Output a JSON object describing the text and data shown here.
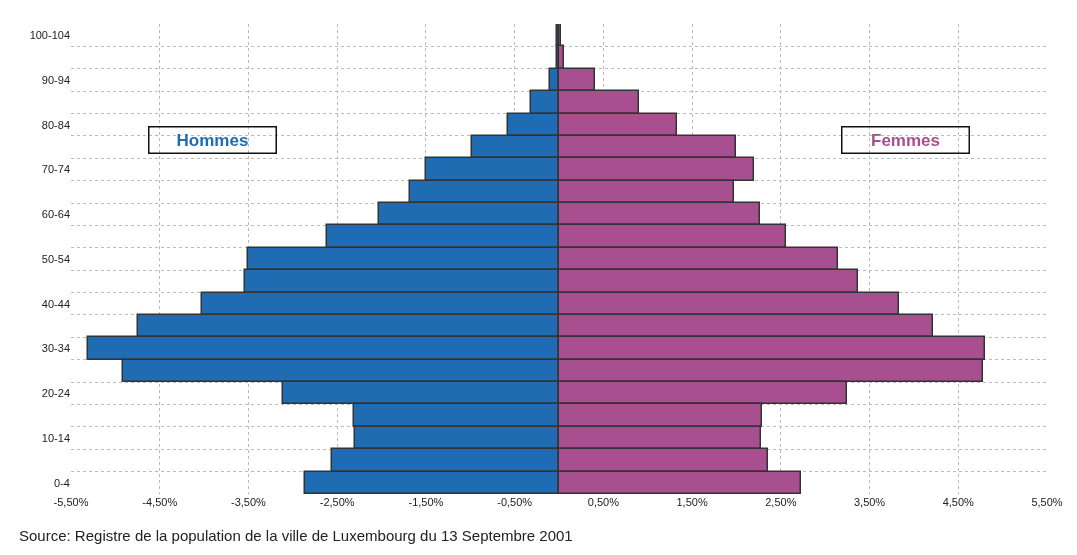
{
  "chart_data": {
    "type": "bar",
    "orientation": "horizontal",
    "categories": [
      "100-104",
      null,
      "90-94",
      null,
      "80-84",
      null,
      "70-74",
      null,
      "60-64",
      null,
      "50-54",
      null,
      "40-44",
      null,
      "30-34",
      null,
      "20-24",
      null,
      "10-14",
      null,
      "0-4"
    ],
    "series": [
      {
        "name": "Hommes",
        "color": "#1f6cb3",
        "values": [
          -0.02,
          -0.02,
          -0.1,
          -0.32,
          -0.58,
          -0.98,
          -1.5,
          -1.68,
          -2.03,
          -2.61,
          -3.5,
          -3.54,
          -4.02,
          -4.75,
          -5.31,
          -4.91,
          -3.11,
          -2.31,
          -2.3,
          -2.56,
          -2.86
        ]
      },
      {
        "name": "Femmes",
        "color": "#a8508f",
        "values": [
          0.02,
          0.06,
          0.41,
          0.9,
          1.33,
          2.0,
          2.2,
          1.97,
          2.26,
          2.56,
          3.15,
          3.37,
          3.83,
          4.22,
          4.8,
          4.78,
          3.25,
          2.29,
          2.28,
          2.36,
          2.73
        ]
      }
    ],
    "xlim": [
      -5.5,
      5.5
    ],
    "xticks": [
      {
        "value": -5.5,
        "label": "-5,50%"
      },
      {
        "value": -4.5,
        "label": "-4,50%"
      },
      {
        "value": -3.5,
        "label": "-3,50%"
      },
      {
        "value": -2.5,
        "label": "-2,50%"
      },
      {
        "value": -1.5,
        "label": "-1,50%"
      },
      {
        "value": -0.5,
        "label": "-0,50%"
      },
      {
        "value": 0.5,
        "label": "0,50%"
      },
      {
        "value": 1.5,
        "label": "1,50%"
      },
      {
        "value": 2.5,
        "label": "2,50%"
      },
      {
        "value": 3.5,
        "label": "3,50%"
      },
      {
        "value": 4.5,
        "label": "4,50%"
      },
      {
        "value": 5.5,
        "label": "5,50%"
      }
    ],
    "grid": true,
    "stacked": true,
    "legend": false,
    "annotations": [
      "Source: Registre de la population de la ville de Luxembourg du 13 Septembre 2001"
    ]
  }
}
